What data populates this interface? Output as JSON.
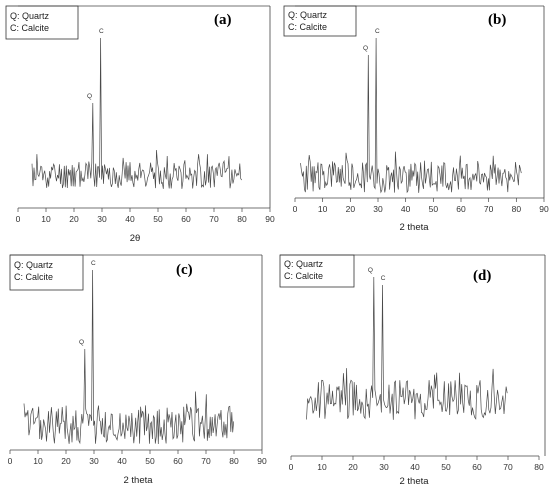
{
  "chart_data": [
    {
      "type": "line",
      "panel_label": "(a)",
      "xlabel": "2θ",
      "xlim": [
        0,
        90
      ],
      "xticks": [
        "0",
        "10",
        "20",
        "30",
        "40",
        "50",
        "60",
        "70",
        "80",
        "90"
      ],
      "legend": [
        "Q: Quartz",
        "C: Calcite"
      ],
      "legend_position": "top-left",
      "peaks": [
        {
          "label": "Q",
          "x": 26.6
        },
        {
          "label": "C",
          "x": 29.4
        }
      ],
      "x_range": [
        5,
        80
      ],
      "seed": 11
    },
    {
      "type": "line",
      "panel_label": "(b)",
      "xlabel": "2 theta",
      "xlim": [
        0,
        90
      ],
      "xticks": [
        "0",
        "10",
        "20",
        "30",
        "40",
        "50",
        "60",
        "70",
        "80",
        "90"
      ],
      "legend": [
        "Q: Quartz",
        "C: Calcite"
      ],
      "legend_position": "top-left",
      "peaks": [
        {
          "label": "Q",
          "x": 26.6
        },
        {
          "label": "C",
          "x": 29.4
        }
      ],
      "x_range": [
        2,
        82
      ],
      "seed": 23
    },
    {
      "type": "line",
      "panel_label": "(c)",
      "xlabel": "2 theta",
      "xlim": [
        0,
        90
      ],
      "xticks": [
        "0",
        "10",
        "20",
        "30",
        "40",
        "50",
        "60",
        "70",
        "80",
        "90"
      ],
      "legend": [
        "Q: Quartz",
        "C: Calcite"
      ],
      "legend_position": "top-left",
      "peaks": [
        {
          "label": "Q",
          "x": 26.6
        },
        {
          "label": "C",
          "x": 29.4
        }
      ],
      "x_range": [
        5,
        80
      ],
      "seed": 37
    },
    {
      "type": "line",
      "panel_label": "(d)",
      "xlabel": "2 theta",
      "xlim": [
        0,
        80
      ],
      "xticks": [
        "0",
        "10",
        "20",
        "30",
        "40",
        "50",
        "60",
        "70",
        "80"
      ],
      "legend": [
        "Q: Quartz",
        "C: Calcite"
      ],
      "legend_position": "top-left",
      "peaks": [
        {
          "label": "Q",
          "x": 26.6
        },
        {
          "label": "C",
          "x": 29.4
        }
      ],
      "x_range": [
        5,
        70
      ],
      "seed": 53
    }
  ]
}
